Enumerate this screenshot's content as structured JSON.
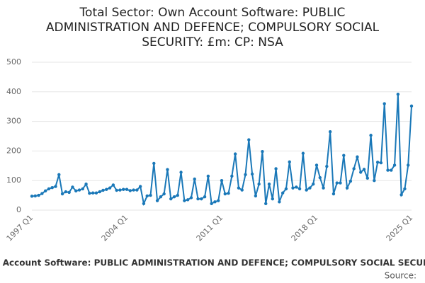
{
  "chart_data": {
    "type": "line",
    "title": [
      "Total Sector: Own Account Software: PUBLIC",
      "ADMINISTRATION AND DEFENCE; COMPULSORY SOCIAL",
      "SECURITY: £m: CP: NSA"
    ],
    "source": "Source:",
    "categories": [
      "1997 Q1",
      null,
      null,
      null,
      null,
      null,
      null,
      null,
      null,
      null,
      null,
      null,
      null,
      null,
      null,
      null,
      null,
      null,
      null,
      null,
      null,
      null,
      null,
      null,
      null,
      null,
      null,
      null,
      "2004 Q1",
      null,
      null,
      null,
      null,
      null,
      null,
      null,
      null,
      null,
      null,
      null,
      null,
      null,
      null,
      null,
      null,
      null,
      null,
      null,
      null,
      null,
      null,
      null,
      null,
      null,
      null,
      null,
      "2011 Q1",
      null,
      null,
      null,
      null,
      null,
      null,
      null,
      null,
      null,
      null,
      null,
      null,
      null,
      null,
      null,
      null,
      null,
      null,
      null,
      null,
      null,
      null,
      null,
      null,
      null,
      null,
      null,
      "2018 Q1",
      null,
      null,
      null,
      null,
      null,
      null,
      null,
      null,
      null,
      null,
      null,
      null,
      null,
      null,
      null,
      null,
      null,
      null,
      null,
      null,
      null,
      null,
      null,
      null,
      null,
      null,
      null,
      "2025 Q1"
    ],
    "series": [
      {
        "name": "Total Sector: Own Account Software: PUBLIC ADMINISTRATION AND DEFENCE; COMPULSORY SOCIAL SECURITY: £m: CP: NSA",
        "color": "#1a78b8",
        "values": [
          47,
          48,
          50,
          56,
          65,
          72,
          76,
          80,
          120,
          55,
          62,
          60,
          78,
          65,
          68,
          72,
          88,
          57,
          58,
          58,
          62,
          67,
          70,
          75,
          85,
          67,
          68,
          70,
          70,
          66,
          68,
          68,
          80,
          22,
          48,
          50,
          158,
          32,
          45,
          55,
          137,
          38,
          45,
          50,
          128,
          32,
          35,
          42,
          105,
          38,
          38,
          45,
          115,
          22,
          28,
          32,
          100,
          55,
          57,
          115,
          190,
          75,
          68,
          120,
          238,
          122,
          48,
          88,
          198,
          22,
          88,
          38,
          140,
          28,
          58,
          72,
          163,
          75,
          78,
          72,
          192,
          68,
          75,
          88,
          152,
          110,
          75,
          148,
          265,
          55,
          92,
          92,
          185,
          75,
          98,
          140,
          180,
          128,
          138,
          108,
          253,
          100,
          162,
          160,
          360,
          135,
          135,
          152,
          392,
          52,
          72,
          152,
          352
        ]
      }
    ],
    "ylim": [
      0,
      500
    ],
    "yticks": [
      0,
      100,
      200,
      300,
      400,
      500
    ],
    "grid": true
  }
}
